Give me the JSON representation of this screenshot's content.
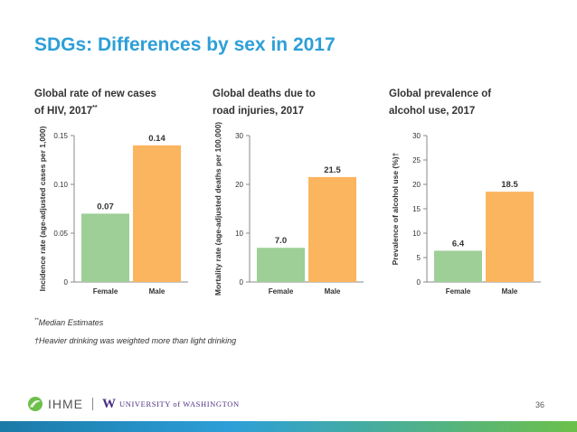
{
  "slide": {
    "title": "SDGs: Differences by sex in 2017",
    "footnote_1_mark": "**",
    "footnote_1_text": "Median Estimates",
    "footnote_2_text": "†Heavier drinking was weighted more than light drinking",
    "page_number": "36",
    "logo_ihme": "IHME",
    "logo_uw_letter": "W",
    "logo_uw_text": "UNIVERSITY of WASHINGTON"
  },
  "colors": {
    "female": "#9dcf96",
    "male": "#fcb55f",
    "title": "#2d9fd8",
    "axis": "#888888"
  },
  "chart_data": [
    {
      "type": "bar",
      "title_line1": "Global rate of new cases",
      "title_line2": "of HIV, 2017",
      "title_mark": "**",
      "ylabel": "Incidence rate (age-adjusted cases per 1,000)",
      "categories": [
        "Female",
        "Male"
      ],
      "values": [
        0.07,
        0.14
      ],
      "value_labels": [
        "0.07",
        "0.14"
      ],
      "ylim": [
        0,
        0.15
      ],
      "yticks": [
        0,
        0.05,
        0.1,
        0.15
      ],
      "ytick_labels": [
        "0",
        "0.05",
        "0.10",
        "0.15"
      ]
    },
    {
      "type": "bar",
      "title_line1": "Global deaths due to",
      "title_line2": "road injuries, 2017",
      "title_mark": "",
      "ylabel": "Mortality rate (age-adjusted deaths per 100,000)",
      "categories": [
        "Female",
        "Male"
      ],
      "values": [
        7.0,
        21.5
      ],
      "value_labels": [
        "7.0",
        "21.5"
      ],
      "ylim": [
        0,
        30
      ],
      "yticks": [
        0,
        10,
        20,
        30
      ],
      "ytick_labels": [
        "0",
        "10",
        "20",
        "30"
      ]
    },
    {
      "type": "bar",
      "title_line1": "Global prevalence of",
      "title_line2": "alcohol use, 2017",
      "title_mark": "",
      "ylabel": "Prevalence of alcohol use (%)†",
      "categories": [
        "Female",
        "Male"
      ],
      "values": [
        6.4,
        18.5
      ],
      "value_labels": [
        "6.4",
        "18.5"
      ],
      "ylim": [
        0,
        30
      ],
      "yticks": [
        0,
        5,
        10,
        15,
        20,
        25,
        30
      ],
      "ytick_labels": [
        "0",
        "5",
        "10",
        "15",
        "20",
        "25",
        "30"
      ]
    }
  ]
}
